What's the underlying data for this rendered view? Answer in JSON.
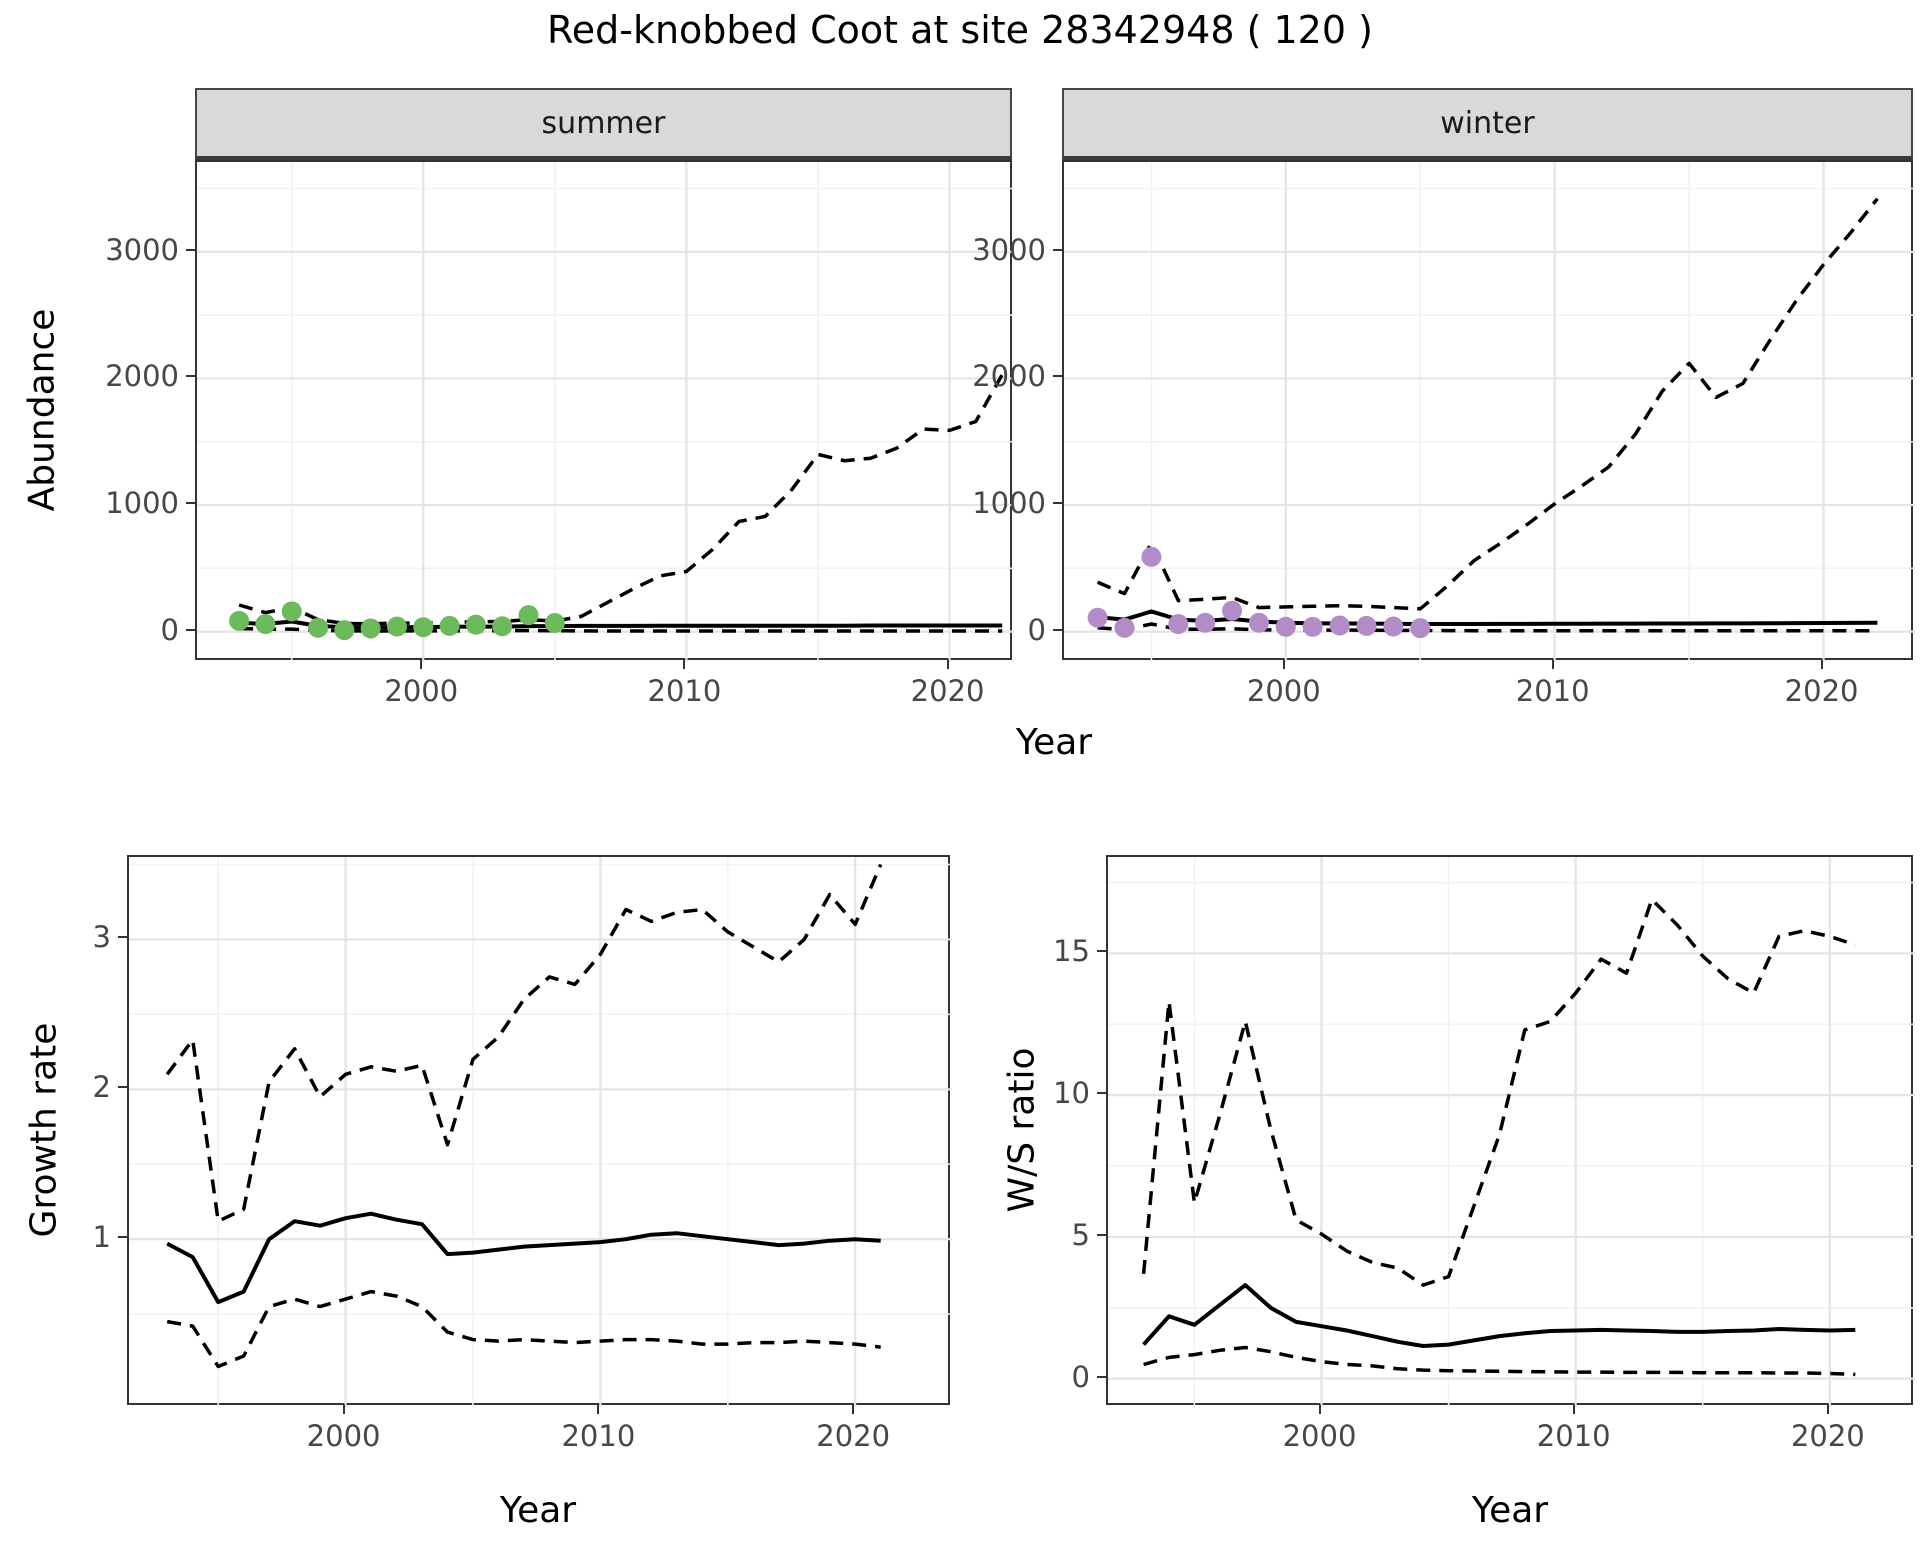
{
  "title": "Red-knobbed Coot at site 28342948 ( 120 )",
  "facets": [
    "summer",
    "winter"
  ],
  "axes": {
    "abundance_label": "Abundance",
    "growth_label": "Growth rate",
    "ws_label": "W/S ratio",
    "year_label": "Year"
  },
  "colors": {
    "summer_points": "#6CBA5C",
    "winter_points": "#B28CC6",
    "line": "#000000",
    "grid_major": "#E4E4E4",
    "grid_minor": "#F2F2F2",
    "strip_bg": "#D9D9D9",
    "tick_text": "#474747"
  },
  "chart_data": [
    {
      "type": "line",
      "name": "abundance-summer",
      "facet": "summer",
      "title": "Red-knobbed Coot at site 28342948 ( 120 )",
      "xlabel": "Year",
      "ylabel": "Abundance",
      "xlim": [
        1991.4,
        2022.45
      ],
      "ylim": [
        -240,
        3710
      ],
      "xticks": [
        2000,
        2010,
        2020
      ],
      "xtick_labels": [
        "2000",
        "2010",
        "2020"
      ],
      "xticks_minor": [
        1995,
        2005,
        2015
      ],
      "yticks": [
        0,
        1000,
        2000,
        3000
      ],
      "ytick_labels": [
        "0",
        "1000",
        "2000",
        "3000"
      ],
      "yticks_minor": [
        500,
        1500,
        2500,
        3500
      ],
      "grid": true,
      "legend": "none",
      "series": [
        {
          "name": "lower-ci-dashed",
          "style": "dashed",
          "x": [
            1993,
            1994,
            1995,
            1996,
            1997,
            1998,
            1999,
            2000,
            2001,
            2002,
            2003,
            2004,
            2005,
            2006,
            2007,
            2008,
            2009,
            2010,
            2011,
            2012,
            2013,
            2014,
            2015,
            2016,
            2017,
            2018,
            2019,
            2020,
            2021,
            2022
          ],
          "y": [
            25,
            18,
            20,
            10,
            6,
            5,
            6,
            6,
            6,
            7,
            7,
            8,
            7,
            6,
            5,
            5,
            5,
            5,
            5,
            5,
            5,
            5,
            5,
            5,
            5,
            5,
            5,
            5,
            5,
            5
          ]
        },
        {
          "name": "upper-ci-dashed",
          "style": "dashed",
          "x": [
            1993,
            1994,
            1995,
            1996,
            1997,
            1998,
            1999,
            2000,
            2001,
            2002,
            2003,
            2004,
            2005,
            2006,
            2007,
            2008,
            2009,
            2010,
            2011,
            2012,
            2013,
            2014,
            2015,
            2016,
            2017,
            2018,
            2019,
            2020,
            2021,
            2022
          ],
          "y": [
            210,
            150,
            190,
            95,
            65,
            62,
            68,
            66,
            72,
            78,
            80,
            95,
            82,
            120,
            230,
            340,
            440,
            475,
            650,
            870,
            910,
            1120,
            1400,
            1350,
            1370,
            1450,
            1600,
            1590,
            1660,
            2030
          ]
        },
        {
          "name": "fitted-line",
          "style": "solid",
          "x": [
            1993,
            1994,
            1995,
            1996,
            1997,
            1998,
            1999,
            2000,
            2001,
            2002,
            2003,
            2004,
            2005,
            2006,
            2007,
            2008,
            2009,
            2010,
            2011,
            2012,
            2013,
            2014,
            2015,
            2016,
            2017,
            2018,
            2019,
            2020,
            2021,
            2022
          ],
          "y": [
            70,
            60,
            80,
            45,
            35,
            33,
            36,
            36,
            38,
            40,
            40,
            44,
            44,
            45,
            45,
            45,
            46,
            46,
            46,
            46,
            47,
            47,
            47,
            47,
            48,
            48,
            48,
            48,
            48,
            48
          ]
        },
        {
          "name": "observed-points",
          "style": "points",
          "color": "#6CBA5C",
          "x": [
            1993,
            1994,
            1995,
            1996,
            1997,
            1998,
            1999,
            2000,
            2001,
            2002,
            2003,
            2004,
            2005
          ],
          "y": [
            85,
            60,
            160,
            30,
            12,
            25,
            40,
            35,
            45,
            55,
            42,
            130,
            68
          ]
        }
      ]
    },
    {
      "type": "line",
      "name": "abundance-winter",
      "facet": "winter",
      "xlabel": "Year",
      "ylabel": "Abundance",
      "xlim": [
        1991.75,
        2023.4
      ],
      "ylim": [
        -240,
        3710
      ],
      "xticks": [
        2000,
        2010,
        2020
      ],
      "xtick_labels": [
        "2000",
        "2010",
        "2020"
      ],
      "xticks_minor": [
        1995,
        2005,
        2015
      ],
      "yticks": [
        0,
        1000,
        2000,
        3000
      ],
      "ytick_labels": [
        "0",
        "1000",
        "2000",
        "3000"
      ],
      "yticks_minor": [
        500,
        1500,
        2500,
        3500
      ],
      "grid": true,
      "legend": "none",
      "series": [
        {
          "name": "lower-ci-dashed",
          "style": "dashed",
          "x": [
            1993,
            1994,
            1995,
            1996,
            1997,
            1998,
            1999,
            2000,
            2001,
            2002,
            2003,
            2004,
            2005,
            2006,
            2007,
            2008,
            2009,
            2010,
            2011,
            2012,
            2013,
            2014,
            2015,
            2016,
            2017,
            2018,
            2019,
            2020,
            2021,
            2022
          ],
          "y": [
            30,
            15,
            60,
            18,
            18,
            22,
            15,
            12,
            12,
            12,
            12,
            10,
            10,
            8,
            7,
            7,
            7,
            7,
            7,
            7,
            7,
            7,
            7,
            7,
            7,
            7,
            7,
            7,
            7,
            7
          ]
        },
        {
          "name": "upper-ci-dashed",
          "style": "dashed",
          "x": [
            1993,
            1994,
            1995,
            1996,
            1997,
            1998,
            1999,
            2000,
            2001,
            2002,
            2003,
            2004,
            2005,
            2006,
            2007,
            2008,
            2009,
            2010,
            2011,
            2012,
            2013,
            2014,
            2015,
            2016,
            2017,
            2018,
            2019,
            2020,
            2021,
            2022
          ],
          "y": [
            390,
            300,
            700,
            245,
            255,
            270,
            190,
            195,
            200,
            205,
            200,
            190,
            180,
            360,
            560,
            700,
            850,
            1010,
            1150,
            1300,
            1560,
            1900,
            2120,
            1850,
            1960,
            2300,
            2620,
            2900,
            3150,
            3420
          ]
        },
        {
          "name": "fitted-line",
          "style": "solid",
          "x": [
            1993,
            1994,
            1995,
            1996,
            1997,
            1998,
            1999,
            2000,
            2001,
            2002,
            2003,
            2004,
            2005,
            2006,
            2007,
            2008,
            2009,
            2010,
            2011,
            2012,
            2013,
            2014,
            2015,
            2016,
            2017,
            2018,
            2019,
            2020,
            2021,
            2022
          ],
          "y": [
            115,
            95,
            160,
            95,
            85,
            100,
            80,
            70,
            65,
            65,
            63,
            62,
            60,
            60,
            60,
            61,
            61,
            62,
            62,
            63,
            63,
            64,
            64,
            65,
            65,
            66,
            67,
            68,
            69,
            70
          ]
        },
        {
          "name": "observed-points",
          "style": "points",
          "color": "#B28CC6",
          "x": [
            1993,
            1994,
            1995,
            1996,
            1997,
            1998,
            1999,
            2000,
            2001,
            2002,
            2003,
            2004,
            2005
          ],
          "y": [
            110,
            30,
            590,
            60,
            70,
            165,
            70,
            38,
            38,
            48,
            45,
            40,
            28
          ]
        }
      ]
    },
    {
      "type": "line",
      "name": "growth-rate",
      "xlabel": "Year",
      "ylabel": "Growth rate",
      "xlim": [
        1991.5,
        2023.8
      ],
      "ylim": [
        -0.12,
        3.55
      ],
      "xticks": [
        2000,
        2010,
        2020
      ],
      "xtick_labels": [
        "2000",
        "2010",
        "2020"
      ],
      "xticks_minor": [
        1995,
        2005,
        2015
      ],
      "yticks": [
        1,
        2,
        3
      ],
      "ytick_labels": [
        "1",
        "2",
        "3"
      ],
      "yticks_minor": [
        0.5,
        1.5,
        2.5,
        3.5
      ],
      "grid": true,
      "legend": "none",
      "series": [
        {
          "name": "lower-ci-dashed",
          "style": "dashed",
          "x": [
            1993,
            1994,
            1995,
            1996,
            1997,
            1998,
            1999,
            2000,
            2001,
            2002,
            2003,
            2004,
            2005,
            2006,
            2007,
            2008,
            2009,
            2010,
            2011,
            2012,
            2013,
            2014,
            2015,
            2016,
            2017,
            2018,
            2019,
            2020,
            2021
          ],
          "y": [
            0.45,
            0.42,
            0.15,
            0.22,
            0.55,
            0.6,
            0.55,
            0.6,
            0.65,
            0.62,
            0.55,
            0.38,
            0.33,
            0.32,
            0.33,
            0.32,
            0.31,
            0.32,
            0.33,
            0.33,
            0.32,
            0.3,
            0.3,
            0.31,
            0.31,
            0.32,
            0.31,
            0.3,
            0.28
          ]
        },
        {
          "name": "upper-ci-dashed",
          "style": "dashed",
          "x": [
            1993,
            1994,
            1995,
            1996,
            1997,
            1998,
            1999,
            2000,
            2001,
            2002,
            2003,
            2004,
            2005,
            2006,
            2007,
            2008,
            2009,
            2010,
            2011,
            2012,
            2013,
            2014,
            2015,
            2016,
            2017,
            2018,
            2019,
            2020,
            2021
          ],
          "y": [
            2.1,
            2.33,
            1.12,
            1.2,
            2.05,
            2.27,
            1.95,
            2.1,
            2.15,
            2.12,
            2.16,
            1.63,
            2.2,
            2.35,
            2.6,
            2.75,
            2.7,
            2.9,
            3.2,
            3.12,
            3.18,
            3.2,
            3.05,
            2.95,
            2.85,
            3.0,
            3.3,
            3.1,
            3.5
          ]
        },
        {
          "name": "fitted-line",
          "style": "solid",
          "x": [
            1993,
            1994,
            1995,
            1996,
            1997,
            1998,
            1999,
            2000,
            2001,
            2002,
            2003,
            2004,
            2005,
            2006,
            2007,
            2008,
            2009,
            2010,
            2011,
            2012,
            2013,
            2014,
            2015,
            2016,
            2017,
            2018,
            2019,
            2020,
            2021
          ],
          "y": [
            0.97,
            0.88,
            0.58,
            0.65,
            1.0,
            1.12,
            1.09,
            1.14,
            1.17,
            1.13,
            1.1,
            0.9,
            0.91,
            0.93,
            0.95,
            0.96,
            0.97,
            0.98,
            1.0,
            1.03,
            1.04,
            1.02,
            1.0,
            0.98,
            0.96,
            0.97,
            0.99,
            1.0,
            0.99
          ]
        }
      ]
    },
    {
      "type": "line",
      "name": "ws-ratio",
      "xlabel": "Year",
      "ylabel": "W/S ratio",
      "xlim": [
        1991.6,
        2023.35
      ],
      "ylim": [
        -1.0,
        18.4
      ],
      "xticks": [
        2000,
        2010,
        2020
      ],
      "xtick_labels": [
        "2000",
        "2010",
        "2020"
      ],
      "xticks_minor": [
        1995,
        2005,
        2015
      ],
      "yticks": [
        0,
        5,
        10,
        15
      ],
      "ytick_labels": [
        "0",
        "5",
        "10",
        "15"
      ],
      "yticks_minor": [
        2.5,
        7.5,
        12.5,
        17.5
      ],
      "grid": true,
      "legend": "none",
      "series": [
        {
          "name": "lower-ci-dashed",
          "style": "dashed",
          "x": [
            1993,
            1994,
            1995,
            1996,
            1997,
            1998,
            1999,
            2000,
            2001,
            2002,
            2003,
            2004,
            2005,
            2006,
            2007,
            2008,
            2009,
            2010,
            2011,
            2012,
            2013,
            2014,
            2015,
            2016,
            2017,
            2018,
            2019,
            2020,
            2021
          ],
          "y": [
            0.5,
            0.75,
            0.85,
            1.0,
            1.1,
            0.95,
            0.75,
            0.6,
            0.5,
            0.45,
            0.35,
            0.3,
            0.28,
            0.27,
            0.26,
            0.25,
            0.24,
            0.23,
            0.23,
            0.22,
            0.22,
            0.22,
            0.21,
            0.21,
            0.21,
            0.2,
            0.2,
            0.18,
            0.15
          ]
        },
        {
          "name": "upper-ci-dashed",
          "style": "dashed",
          "x": [
            1993,
            1994,
            1995,
            1996,
            1997,
            1998,
            1999,
            2000,
            2001,
            2002,
            2003,
            2004,
            2005,
            2006,
            2007,
            2008,
            2009,
            2010,
            2011,
            2012,
            2013,
            2014,
            2015,
            2016,
            2017,
            2018,
            2019,
            2020,
            2021
          ],
          "y": [
            3.7,
            13.3,
            6.2,
            9.3,
            12.6,
            8.8,
            5.6,
            5.1,
            4.5,
            4.1,
            3.9,
            3.3,
            3.6,
            6.1,
            8.6,
            12.3,
            12.6,
            13.6,
            14.8,
            14.3,
            16.9,
            16.0,
            14.9,
            14.1,
            13.6,
            15.6,
            15.8,
            15.6,
            15.3
          ]
        },
        {
          "name": "fitted-line",
          "style": "solid",
          "x": [
            1993,
            1994,
            1995,
            1996,
            1997,
            1998,
            1999,
            2000,
            2001,
            2002,
            2003,
            2004,
            2005,
            2006,
            2007,
            2008,
            2009,
            2010,
            2011,
            2012,
            2013,
            2014,
            2015,
            2016,
            2017,
            2018,
            2019,
            2020,
            2021
          ],
          "y": [
            1.2,
            2.2,
            1.9,
            2.6,
            3.3,
            2.5,
            2.0,
            1.85,
            1.7,
            1.5,
            1.3,
            1.15,
            1.2,
            1.35,
            1.5,
            1.6,
            1.68,
            1.7,
            1.72,
            1.7,
            1.68,
            1.65,
            1.65,
            1.68,
            1.7,
            1.75,
            1.72,
            1.7,
            1.72
          ]
        }
      ]
    }
  ]
}
